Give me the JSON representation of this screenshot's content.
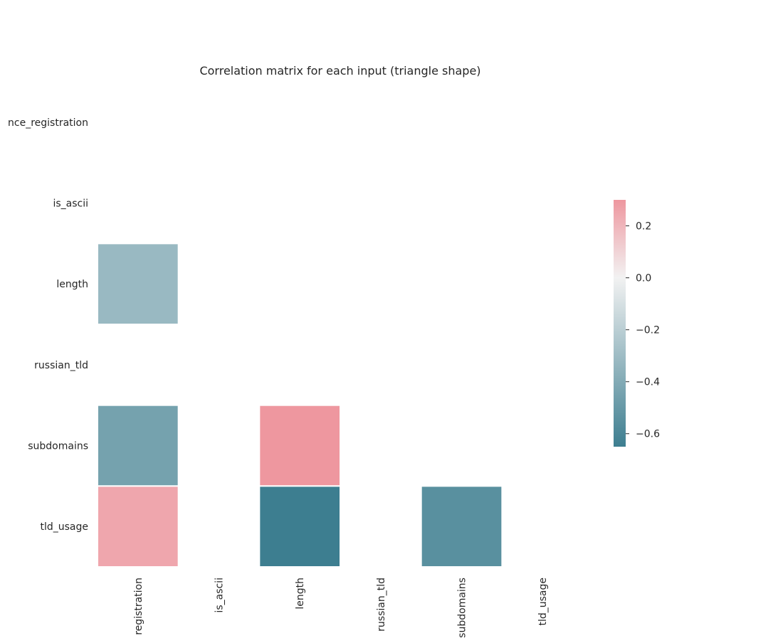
{
  "chart_data": {
    "type": "heatmap",
    "title": "Correlation matrix for each input (triangle shape)",
    "xlabel": "",
    "ylabel": "",
    "row_labels": [
      "nce_registration",
      "is_ascii",
      "length",
      "russian_tld",
      "subdomains",
      "tld_usage"
    ],
    "col_labels": [
      "registration",
      "is_ascii",
      "length",
      "russian_tld",
      "subdomains",
      "tld_usage"
    ],
    "mask": "upper-triangle-including-diagonal",
    "cells": [
      {
        "row": 2,
        "col": 0,
        "value": -0.32
      },
      {
        "row": 4,
        "col": 0,
        "value": -0.45
      },
      {
        "row": 4,
        "col": 2,
        "value": 0.3
      },
      {
        "row": 5,
        "col": 0,
        "value": 0.25
      },
      {
        "row": 5,
        "col": 2,
        "value": -0.65
      },
      {
        "row": 5,
        "col": 4,
        "value": -0.55
      }
    ],
    "colorbar": {
      "vmin": -0.65,
      "vmax": 0.3,
      "ticks": [
        0.2,
        0.0,
        -0.2,
        -0.4,
        -0.6
      ],
      "tick_labels": [
        "0.2",
        "0.0",
        "−0.2",
        "−0.4",
        "−0.6"
      ],
      "colors": {
        "low": "#3d7e90",
        "mid": "#f2f2f2",
        "high": "#ee979f"
      },
      "position": "right"
    },
    "grid": false,
    "cell_border_color": "#ffffff"
  }
}
